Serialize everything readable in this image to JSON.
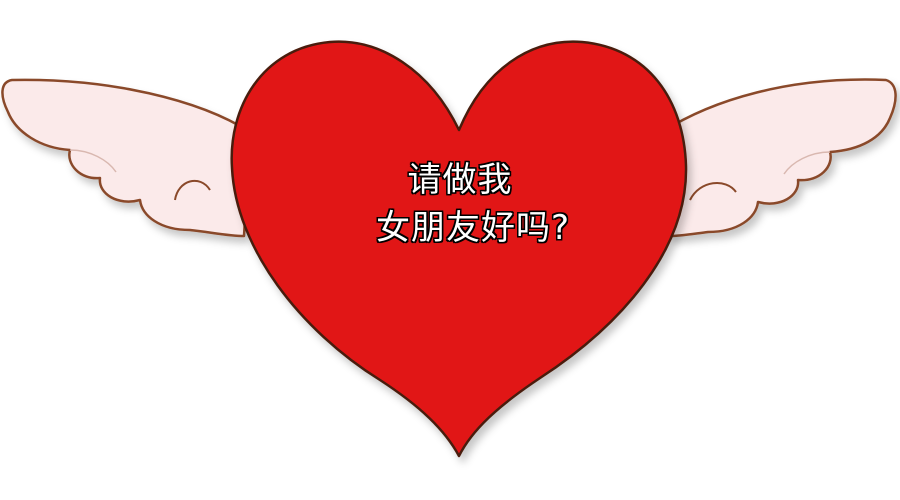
{
  "message": {
    "line1": "请做我",
    "line2": "女朋友好吗?"
  },
  "colors": {
    "heart_fill": "#e11414",
    "heart_outline": "#4a1e10",
    "wing_fill": "#fbeaea",
    "wing_outline": "#8a4a2a",
    "background": "#ffffff"
  },
  "icons": {
    "heart": "heart-icon",
    "wings": "angel-wings-icon"
  }
}
